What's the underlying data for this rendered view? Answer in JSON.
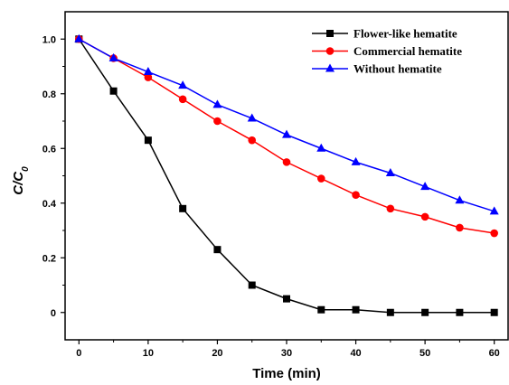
{
  "chart_data": {
    "type": "line",
    "xlabel": "Time (min)",
    "ylabel_main": "C/C",
    "ylabel_sub": "0",
    "x": [
      0,
      5,
      10,
      15,
      20,
      25,
      30,
      35,
      40,
      45,
      50,
      55,
      60
    ],
    "xlim": [
      -2,
      62
    ],
    "ylim": [
      -0.1,
      1.1
    ],
    "x_ticks": [
      "0",
      "10",
      "20",
      "30",
      "40",
      "50",
      "60"
    ],
    "y_ticks": [
      "0",
      "0.2",
      "0.4",
      "0.6",
      "0.8",
      "1.0"
    ],
    "grid": false,
    "legend_position": "top-right",
    "series": [
      {
        "name": "Flower-like hematite",
        "color": "#000000",
        "marker": "square",
        "values": [
          1.0,
          0.81,
          0.63,
          0.38,
          0.23,
          0.1,
          0.05,
          0.01,
          0.01,
          0.0,
          0.0,
          0.0,
          0.0
        ]
      },
      {
        "name": "Commercial hematite",
        "color": "#ff0000",
        "marker": "circle",
        "values": [
          1.0,
          0.93,
          0.86,
          0.78,
          0.7,
          0.63,
          0.55,
          0.49,
          0.43,
          0.38,
          0.35,
          0.31,
          0.29
        ]
      },
      {
        "name": "Without hematite",
        "color": "#0000ff",
        "marker": "triangle",
        "values": [
          1.0,
          0.93,
          0.88,
          0.83,
          0.76,
          0.71,
          0.65,
          0.6,
          0.55,
          0.51,
          0.46,
          0.41,
          0.37
        ]
      }
    ]
  }
}
